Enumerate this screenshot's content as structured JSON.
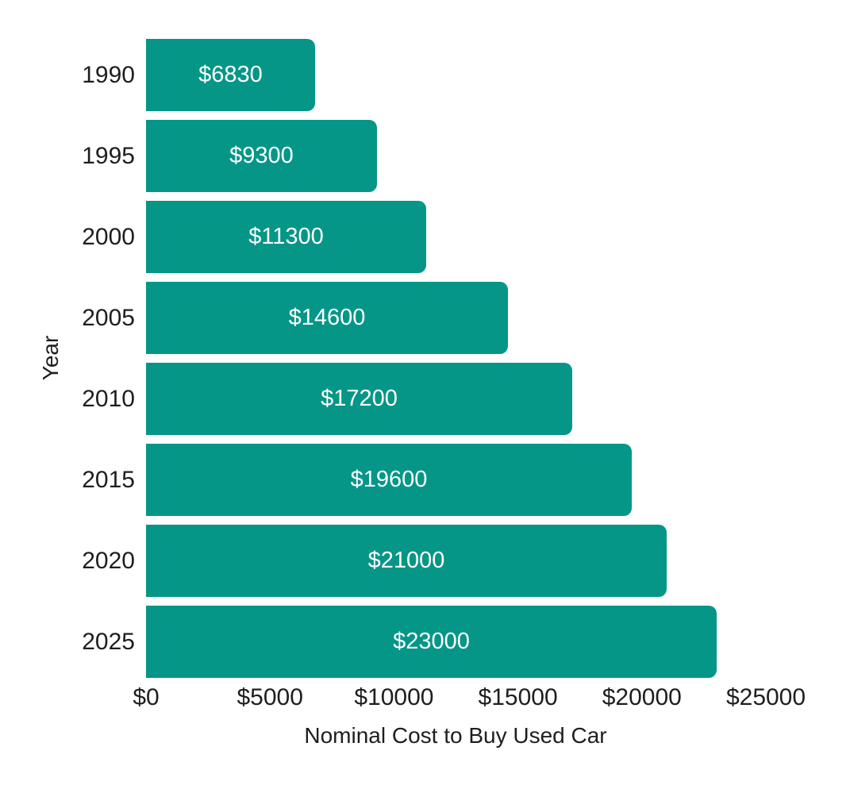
{
  "chart_data": {
    "type": "bar",
    "orientation": "horizontal",
    "title": "",
    "xlabel": "Nominal Cost to Buy Used Car",
    "ylabel": "Year",
    "categories": [
      "1990",
      "1995",
      "2000",
      "2005",
      "2010",
      "2015",
      "2020",
      "2025"
    ],
    "values": [
      6830,
      9300,
      11300,
      14600,
      17200,
      19600,
      21000,
      23000
    ],
    "bar_labels": [
      "$6830",
      "$9300",
      "$11300",
      "$14600",
      "$17200",
      "$19600",
      "$21000",
      "$23000"
    ],
    "x_tick_values": [
      0,
      5000,
      10000,
      15000,
      20000,
      25000
    ],
    "x_tick_labels": [
      "$0",
      "$5000",
      "$10000",
      "$15000",
      "$20000",
      "$25000"
    ],
    "xlim": [
      0,
      25000
    ],
    "grid": false,
    "legend_position": "none",
    "colors": {
      "bar": "#059688",
      "bar_label": "#ffffff",
      "axis_text": "#1e1e1e",
      "background": "#ffffff"
    }
  }
}
